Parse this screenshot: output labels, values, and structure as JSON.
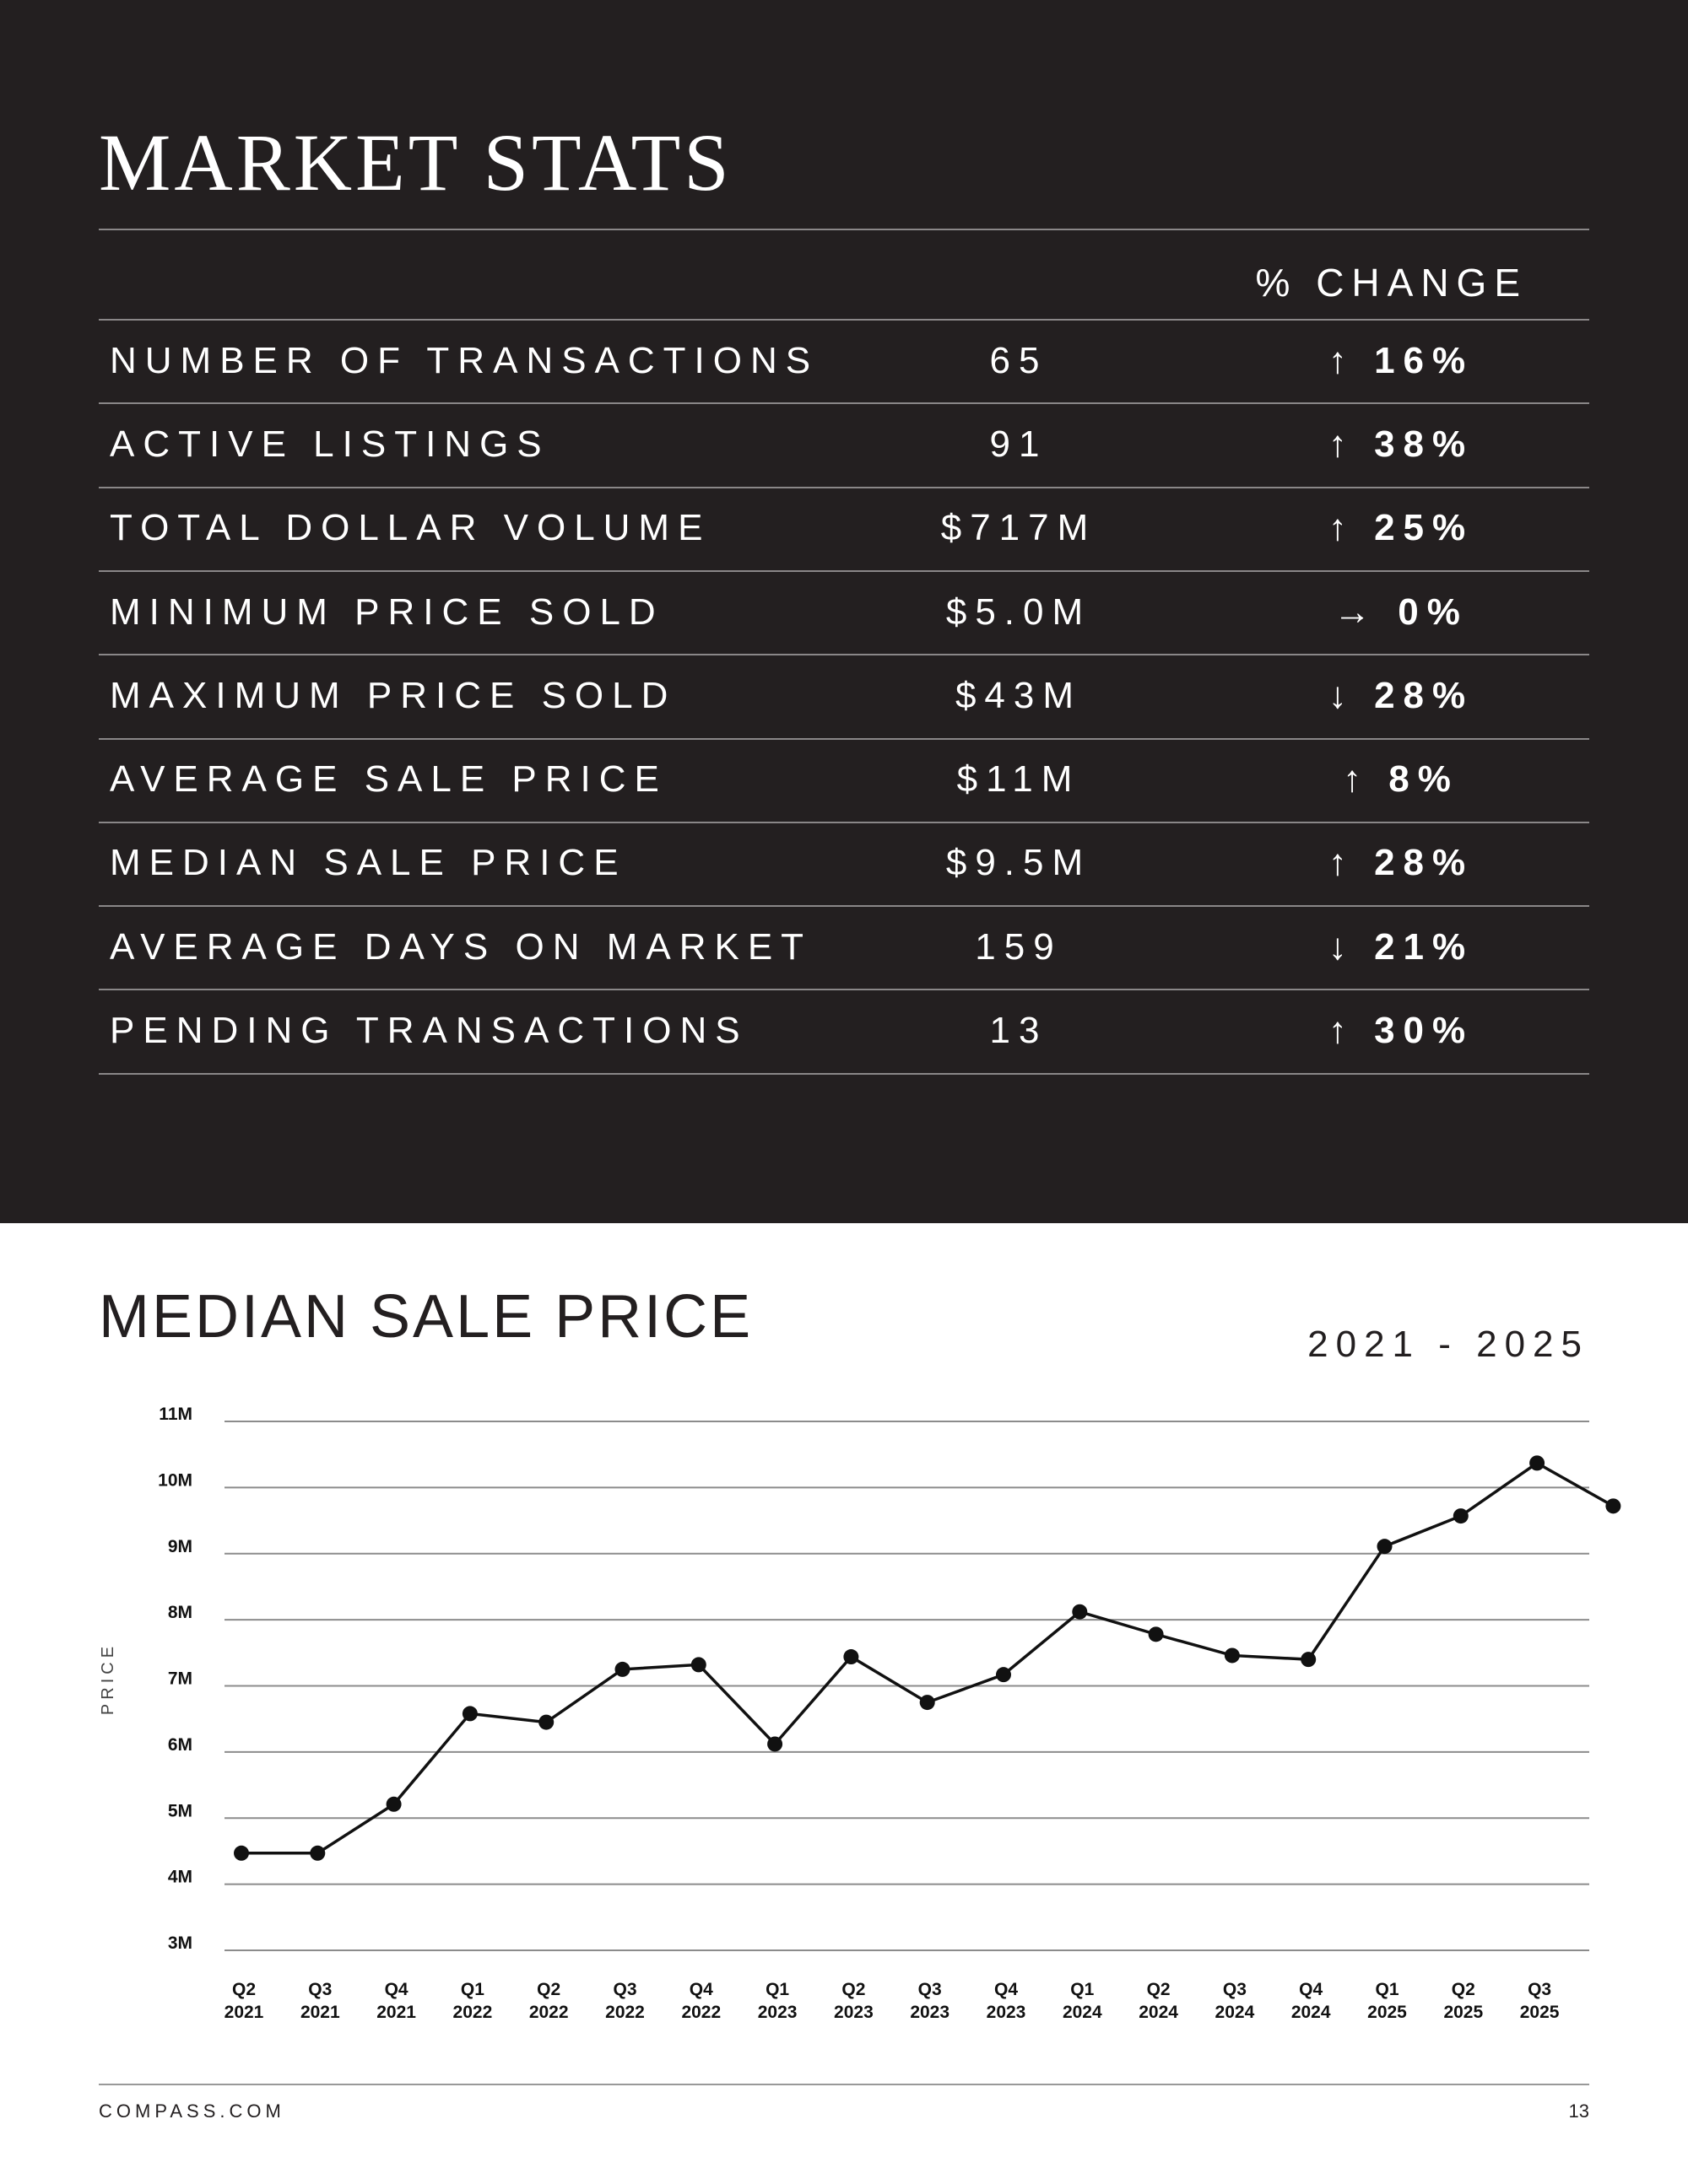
{
  "market_stats": {
    "title": "MARKET STATS",
    "header": "% CHANGE",
    "rows": [
      [
        "NUMBER OF TRANSACTIONS",
        "65",
        "↑ 16%"
      ],
      [
        "ACTIVE LISTINGS",
        "91",
        "↑ 38%"
      ],
      [
        "TOTAL DOLLAR VOLUME",
        "$717M",
        "↑ 25%"
      ],
      [
        "MINIMUM PRICE SOLD",
        "$5.0M",
        "→ 0%"
      ],
      [
        "MAXIMUM PRICE SOLD",
        "$43M",
        "↓ 28%"
      ],
      [
        "AVERAGE SALE PRICE",
        "$11M",
        "↑ 8%"
      ],
      [
        "MEDIAN SALE PRICE",
        "$9.5M",
        "↑ 28%"
      ],
      [
        "AVERAGE DAYS ON MARKET",
        "159",
        "↓ 21%"
      ],
      [
        "PENDING TRANSACTIONS",
        "13",
        "↑ 30%"
      ]
    ]
  },
  "chart_data": {
    "type": "line",
    "title": "MEDIAN SALE PRICE",
    "subtitle": "2021 - 2025",
    "y_label": "PRICE",
    "categories": [
      "Q2\n2021",
      "Q3\n2021",
      "Q4\n2021",
      "Q1\n2022",
      "Q2\n2022",
      "Q3\n2022",
      "Q4\n2022",
      "Q1\n2023",
      "Q2\n2023",
      "Q3\n2023",
      "Q4\n2023",
      "Q1\n2024",
      "Q2\n2024",
      "Q3\n2024",
      "Q4\n2024",
      "Q1\n2025",
      "Q2\n2025",
      "Q3\n2025",
      null
    ],
    "values": [
      4.47,
      4.47,
      5.21,
      6.58,
      6.45,
      7.25,
      7.32,
      6.12,
      7.44,
      6.75,
      7.17,
      8.12,
      7.78,
      7.46,
      7.4,
      9.11,
      9.57,
      10.37,
      9.72
    ],
    "color": "#111111",
    "ylim": [
      3,
      11
    ],
    "yticks": [
      {
        "value": 3,
        "label": "3M"
      },
      {
        "value": 4,
        "label": "4M"
      },
      {
        "value": 5,
        "label": "5M"
      },
      {
        "value": 6,
        "label": "6M"
      },
      {
        "value": 7,
        "label": "7M"
      },
      {
        "value": 8,
        "label": "8M"
      },
      {
        "value": 9,
        "label": "9M"
      },
      {
        "value": 10,
        "label": "10M"
      },
      {
        "value": 11,
        "label": "11M"
      }
    ],
    "grid": true
  },
  "footer": {
    "site": "COMPASS.COM",
    "page": "13"
  }
}
